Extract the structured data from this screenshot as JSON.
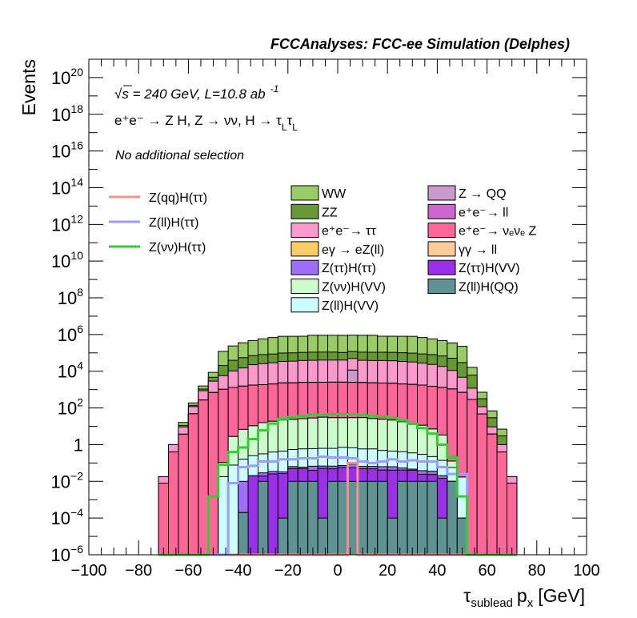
{
  "chart_data": {
    "type": "stacked-histogram",
    "title": "FCCAnalyses: FCC-ee Simulation (Delphes)",
    "xlabel": "τ",
    "xlabel_sub": "sublead",
    "xlabel_rest": "p",
    "xlabel_rest_sub": "x",
    "xlabel_unit": "[GeV]",
    "ylabel": "Events",
    "xlim": [
      -100,
      100
    ],
    "ylim_log10": [
      -6,
      21
    ],
    "yscale": "log",
    "x_ticks": [
      "−100",
      "−80",
      "−60",
      "−40",
      "−20",
      "0",
      "20",
      "40",
      "60",
      "80",
      "100"
    ],
    "y_ticks": [
      {
        "base": "10",
        "exp": "−6"
      },
      {
        "base": "10",
        "exp": "−4"
      },
      {
        "base": "10",
        "exp": "−2"
      },
      {
        "base": "1",
        "exp": ""
      },
      {
        "base": "10",
        "exp": "2"
      },
      {
        "base": "10",
        "exp": "4"
      },
      {
        "base": "10",
        "exp": "6"
      },
      {
        "base": "10",
        "exp": "8"
      },
      {
        "base": "10",
        "exp": "10"
      },
      {
        "base": "10",
        "exp": "12"
      },
      {
        "base": "10",
        "exp": "14"
      },
      {
        "base": "10",
        "exp": "16"
      },
      {
        "base": "10",
        "exp": "18"
      },
      {
        "base": "10",
        "exp": "20"
      }
    ],
    "annotations": {
      "energy_prefix": "s",
      "energy": " = 240 GeV, L=10.8 ab",
      "energy_exp": "-1",
      "process": "e⁺e⁻ → Z H, Z  → νν, H → τ",
      "process_sub1": "L",
      "process_tau2": "τ",
      "process_sub2": "L",
      "selection": "No additional selection"
    },
    "bin_edges": [
      -72,
      -68,
      -64,
      -60,
      -56,
      -52,
      -48,
      -44,
      -40,
      -36,
      -32,
      -28,
      -24,
      -20,
      -16,
      -12,
      -8,
      -4,
      0,
      4,
      8,
      12,
      16,
      20,
      24,
      28,
      32,
      36,
      40,
      44,
      48,
      52,
      56,
      60,
      64,
      68,
      72
    ],
    "stack_series": [
      {
        "name": "Z(ll)H(QQ)",
        "color": "#5f9393",
        "values": [
          0,
          0,
          0,
          0,
          0,
          0,
          0,
          0,
          0.0002,
          0,
          0.01,
          0,
          0.0001,
          0.01,
          0.01,
          0.01,
          0.0001,
          0.01,
          0.01,
          0.01,
          0.01,
          0.01,
          0.01,
          0.0001,
          0.01,
          0.01,
          0.01,
          0.01,
          0.0001,
          0.01,
          0.0001,
          0,
          0,
          0,
          0,
          0
        ]
      },
      {
        "name": "Z(ττ)H(VV)",
        "color": "#9930e8",
        "values": [
          0,
          0,
          0,
          0,
          0,
          0,
          0,
          0,
          0,
          0.0202,
          0.0094,
          0.0255,
          0.0269,
          0.0396,
          0.0399,
          0.0301,
          0.0509,
          0.0386,
          0.0479,
          0.0459,
          0.0387,
          0.0381,
          0.0315,
          0.0408,
          0.0311,
          0.0302,
          0.0144,
          0.0139,
          0.0146,
          0,
          0,
          0,
          0,
          0,
          0,
          0
        ]
      },
      {
        "name": "Z(ττ)H(ττ)",
        "color": "#9d6ffa",
        "values": [
          0,
          0,
          0,
          0,
          0,
          0,
          0,
          0,
          0.0098,
          0,
          0.0096,
          0.0091,
          0.0058,
          0.0144,
          0.0092,
          0.0269,
          0.0172,
          0.0186,
          0.0155,
          0.0311,
          0.0168,
          0.0172,
          0.0217,
          0.0217,
          0.0121,
          0.0062,
          0.0138,
          0.0116,
          0.0056,
          0,
          0,
          0,
          0,
          0,
          0,
          0
        ]
      },
      {
        "name": "Z(ll)H(VV)",
        "color": "#ccfcfc",
        "values": [
          0,
          0,
          0,
          0,
          0,
          0,
          0.018,
          0.077,
          0.152,
          0.23,
          0.286,
          0.36,
          0.41,
          0.48,
          0.53,
          0.54,
          0.56,
          0.56,
          0.64,
          0.59,
          0.52,
          0.52,
          0.42,
          0.38,
          0.36,
          0.31,
          0.26,
          0.188,
          0.119,
          0.047,
          0.017,
          0,
          0,
          0,
          0,
          0
        ]
      },
      {
        "name": "Z(νν)H(VV)",
        "color": "#ccfccc",
        "values": [
          0,
          0,
          0,
          0,
          0,
          0,
          0.09,
          2.7,
          6.6,
          10.4,
          15.5,
          18.4,
          21.5,
          23.2,
          25.3,
          27.6,
          30.6,
          28.8,
          28.5,
          28.7,
          29.0,
          25.7,
          23.8,
          21.4,
          17.3,
          12.3,
          11.1,
          6.9,
          3.2,
          0.07,
          0,
          0,
          0,
          0,
          0,
          0
        ]
      },
      {
        "name": "γγ → ll",
        "color": "#f9cc99",
        "values": [
          0,
          0,
          0,
          0,
          0,
          0,
          0,
          0,
          0,
          0,
          0,
          0,
          0,
          0,
          0,
          0,
          0,
          0,
          0,
          0,
          0,
          0,
          0,
          0,
          0,
          0,
          0,
          0,
          0,
          0,
          0,
          0,
          0,
          0,
          0,
          0
        ]
      },
      {
        "name": "e⁺e⁻ → νₑνₑ Z",
        "color": "#fc6699",
        "values": [
          0.008,
          0.4,
          3.7,
          48,
          270,
          690,
          1030,
          1300,
          1530,
          1740,
          1840,
          2000,
          2280,
          2300,
          2450,
          2430,
          2480,
          2500,
          2500,
          2450,
          2400,
          2300,
          2250,
          2180,
          2000,
          1900,
          1750,
          1510,
          1310,
          1080,
          700,
          290,
          47,
          3.8,
          0.4,
          0.008
        ]
      },
      {
        "name": "e⁺e⁻ → ll",
        "color": "#cc66cc",
        "values": [
          0,
          0,
          0,
          0,
          0,
          0,
          0,
          0,
          0,
          0,
          0,
          0,
          0,
          0,
          0,
          0,
          0,
          0,
          0,
          0,
          0,
          0,
          0,
          0,
          0,
          0,
          0,
          0,
          0,
          0,
          0,
          0,
          0,
          0,
          0,
          0
        ]
      },
      {
        "name": "Z → QQ",
        "color": "#cc99cc",
        "values": [
          0,
          0,
          0,
          0,
          0,
          0,
          0,
          0,
          0,
          0,
          0,
          0,
          0,
          0,
          0,
          0,
          0,
          0,
          0,
          9000,
          0,
          0,
          0,
          0,
          0,
          0,
          0,
          0,
          0,
          0,
          0,
          0,
          0,
          0,
          0,
          0
        ]
      },
      {
        "name": "eγ → eZ(ll)",
        "color": "#fccc66",
        "values": [
          0,
          0,
          0,
          0,
          0,
          0,
          0,
          0,
          0,
          0,
          0,
          0,
          0,
          0,
          0,
          0,
          0,
          0,
          0,
          0,
          0,
          0,
          0,
          0,
          0,
          0,
          0,
          0,
          0,
          0,
          0,
          0,
          0,
          0,
          0,
          0
        ]
      },
      {
        "name": "e⁺e⁻→ ττ",
        "color": "#fc99cc",
        "values": [
          0.01,
          0.6,
          5.5,
          70,
          600,
          2200,
          4700,
          9000,
          13500,
          21000,
          24000,
          27000,
          32000,
          33000,
          36000,
          37000,
          38000,
          38000,
          38000,
          38000,
          37000,
          36000,
          36000,
          35000,
          32000,
          30000,
          26000,
          22000,
          17000,
          10000,
          4000,
          900,
          70,
          5.5,
          0.6,
          0.01
        ]
      },
      {
        "name": "ZZ",
        "color": "#669933",
        "values": [
          0,
          0,
          2,
          20,
          200,
          1800,
          15000,
          29000,
          40000,
          48000,
          55000,
          58000,
          64000,
          65000,
          68000,
          70000,
          70000,
          70000,
          65000,
          70000,
          70000,
          70000,
          70000,
          70000,
          68000,
          65000,
          60000,
          57000,
          50000,
          40000,
          25000,
          5000,
          200,
          20,
          2,
          0
        ]
      },
      {
        "name": "WW",
        "color": "#99cc66",
        "values": [
          0,
          0,
          5,
          50,
          500,
          4000,
          100000,
          200000,
          300000,
          400000,
          500000,
          600000,
          700000,
          700000,
          700000,
          800000,
          800000,
          800000,
          800000,
          800000,
          800000,
          800000,
          700000,
          700000,
          700000,
          700000,
          600000,
          500000,
          400000,
          300000,
          200000,
          10000,
          400,
          40,
          4,
          0
        ]
      }
    ],
    "stack_legend_order": [
      {
        "name": "WW",
        "color": "#99cc66"
      },
      {
        "name": "Z → QQ",
        "color": "#cc99cc"
      },
      {
        "name": "ZZ",
        "color": "#669933"
      },
      {
        "name": "e⁺e⁻→ ll",
        "color": "#cc66cc"
      },
      {
        "name": "e⁺e⁻→ ττ",
        "color": "#fc99cc"
      },
      {
        "name": "e⁺e⁻→ νₑνₑ Z",
        "color": "#fc6699"
      },
      {
        "name": "eγ → eZ(ll)",
        "color": "#fccc66"
      },
      {
        "name": "γγ → ll",
        "color": "#f9cc99"
      },
      {
        "name": "Z(ττ)H(ττ)",
        "color": "#9d6ffa"
      },
      {
        "name": "Z(ττ)H(VV)",
        "color": "#9930e8"
      },
      {
        "name": "Z(νν)H(VV)",
        "color": "#ccfccc"
      },
      {
        "name": "Z(ll)H(QQ)",
        "color": "#5f9393"
      },
      {
        "name": "Z(ll)H(VV)",
        "color": "#ccfcfc"
      }
    ],
    "signal_series": [
      {
        "name": "Z(qq)H(ττ)",
        "color": "#fc8f8f",
        "values": [
          0,
          0,
          0,
          0,
          0,
          0,
          0,
          0,
          0,
          0,
          0,
          0,
          0,
          0,
          0,
          0,
          0,
          0,
          0,
          0.1,
          0,
          0,
          0,
          0,
          0,
          0,
          0,
          0,
          0,
          0,
          0,
          0,
          0,
          0,
          0,
          0
        ]
      },
      {
        "name": "Z(ll)H(ττ)",
        "color": "#9c9cf9",
        "values": [
          0,
          0,
          0,
          0,
          0,
          0,
          0,
          0.008,
          0.06,
          0.07,
          0.12,
          0.12,
          0.16,
          0.16,
          0.18,
          0.18,
          0.22,
          0.2,
          0.2,
          0.18,
          0.12,
          0.1,
          0.12,
          0.16,
          0.12,
          0.14,
          0.12,
          0.12,
          0.06,
          0.025,
          0.025,
          0,
          0,
          0,
          0,
          0
        ]
      },
      {
        "name": "Z(νν)H(ττ)",
        "color": "#33cc33",
        "values": [
          0,
          0,
          0,
          0,
          0,
          0.0015,
          0.08,
          0.4,
          0.7,
          2.0,
          6.0,
          14,
          25,
          31,
          35,
          43,
          40,
          45,
          45,
          45,
          40,
          37,
          34,
          28,
          21,
          14,
          8,
          4.0,
          1.0,
          0.2,
          0.0015,
          0,
          0,
          0,
          0,
          0
        ]
      }
    ],
    "signal_legend_order": [
      {
        "name": "Z(qq)H(ττ)",
        "color": "#fc8f8f"
      },
      {
        "name": "Z(ll)H(ττ)",
        "color": "#9c9cf9"
      },
      {
        "name": "Z(νν)H(ττ)",
        "color": "#33cc33"
      }
    ]
  }
}
